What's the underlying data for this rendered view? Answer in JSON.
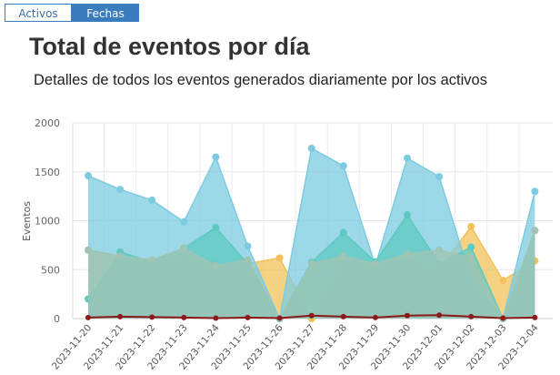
{
  "tabs": [
    {
      "label": "Activos",
      "active": false
    },
    {
      "label": "Fechas",
      "active": true
    }
  ],
  "header": {
    "title": "Total de eventos por día",
    "subtitle": "Detalles de todos los eventos generados diariamente por los activos"
  },
  "chart_data": {
    "type": "area",
    "title": "Total de eventos por día",
    "subtitle": "Detalles de todos los eventos generados diariamente por los activos",
    "xlabel": "",
    "ylabel": "Eventos",
    "ylim": [
      0,
      2000
    ],
    "yticks": [
      0,
      500,
      1000,
      1500,
      2000
    ],
    "grid": true,
    "categories": [
      "2023-11-20",
      "2023-11-21",
      "2023-11-22",
      "2023-11-23",
      "2023-11-24",
      "2023-11-25",
      "2023-11-26",
      "2023-11-27",
      "2023-11-28",
      "2023-11-29",
      "2023-11-30",
      "2023-12-01",
      "2023-12-02",
      "2023-12-03",
      "2023-12-04"
    ],
    "series": [
      {
        "color": "#f2c15a",
        "values": [
          700,
          620,
          560,
          650,
          560,
          560,
          620,
          0,
          580,
          560,
          600,
          500,
          940,
          390,
          590
        ]
      },
      {
        "color": "#7ccbe0",
        "values": [
          1460,
          1320,
          1210,
          990,
          1650,
          740,
          0,
          1740,
          1560,
          540,
          1640,
          1450,
          400,
          0,
          1300
        ]
      },
      {
        "color": "#5ec9c2",
        "values": [
          200,
          680,
          580,
          720,
          930,
          560,
          0,
          575,
          880,
          580,
          1060,
          560,
          730,
          0,
          900
        ]
      },
      {
        "color": "#a0c4b4",
        "values": [
          700,
          640,
          600,
          720,
          540,
          600,
          0,
          560,
          640,
          560,
          660,
          700,
          620,
          0,
          900
        ]
      },
      {
        "color": "#8b1a1a",
        "values": [
          10,
          20,
          15,
          10,
          5,
          10,
          5,
          30,
          20,
          10,
          30,
          35,
          20,
          5,
          10
        ]
      }
    ]
  }
}
